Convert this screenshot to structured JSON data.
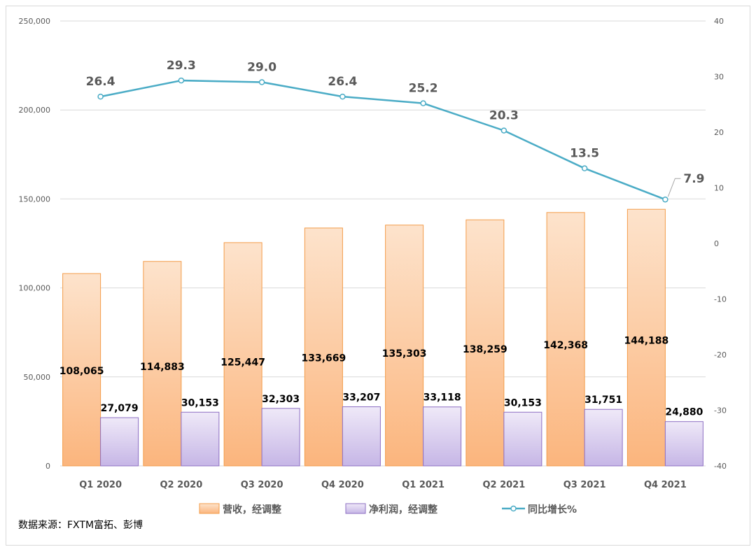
{
  "chart_data": {
    "type": "bar",
    "categories": [
      "Q1 2020",
      "Q2 2020",
      "Q3 2020",
      "Q4 2020",
      "Q1 2021",
      "Q2 2021",
      "Q3 2021",
      "Q4 2021"
    ],
    "series": [
      {
        "name": "营收，经调整",
        "type": "bar",
        "axis": "left",
        "values": [
          108065,
          114883,
          125447,
          133669,
          135303,
          138259,
          142368,
          144188
        ],
        "labels": [
          "108,065",
          "114,883",
          "125,447",
          "133,669",
          "135,303",
          "138,259",
          "142,368",
          "144,188"
        ]
      },
      {
        "name": "净利润，经调整",
        "type": "bar",
        "axis": "left",
        "values": [
          27079,
          30153,
          32303,
          33207,
          33118,
          30153,
          31751,
          24880
        ],
        "labels": [
          "27,079",
          "30,153",
          "32,303",
          "33,207",
          "33,118",
          "30,153",
          "31,751",
          "24,880"
        ]
      },
      {
        "name": "同比增长%",
        "type": "line",
        "axis": "right",
        "values": [
          26.4,
          29.3,
          29.0,
          26.4,
          25.2,
          20.3,
          13.5,
          7.9
        ],
        "labels": [
          "26.4",
          "29.3",
          "29.0",
          "26.4",
          "25.2",
          "20.3",
          "13.5",
          "7.9"
        ]
      }
    ],
    "ylim": [
      0,
      250000
    ],
    "y_ticks": [
      0,
      50000,
      100000,
      150000,
      200000,
      250000
    ],
    "y_tick_labels": [
      "0",
      "50,000",
      "100,000",
      "150,000",
      "200,000",
      "250,000"
    ],
    "y2lim": [
      -40,
      40
    ],
    "y2_ticks": [
      -40,
      -30,
      -20,
      -10,
      0,
      10,
      20,
      30,
      40
    ],
    "y2_tick_labels": [
      "-40",
      "-30",
      "-20",
      "-10",
      "0",
      "10",
      "20",
      "30",
      "40"
    ],
    "grid": true,
    "legend_position": "bottom",
    "colors": {
      "revenue_fill_top": "#fde3cc",
      "revenue_fill_bottom": "#fbb57d",
      "revenue_border": "#f39c4a",
      "profit_fill_top": "#efe9f8",
      "profit_fill_bottom": "#c6b6e6",
      "profit_border": "#8d6fc3",
      "line": "#4bacc6",
      "grid": "#d9d9d9",
      "axis_text": "#595959",
      "line_label": "#595959"
    }
  },
  "source": "数据来源：FXTM富拓、彭博"
}
